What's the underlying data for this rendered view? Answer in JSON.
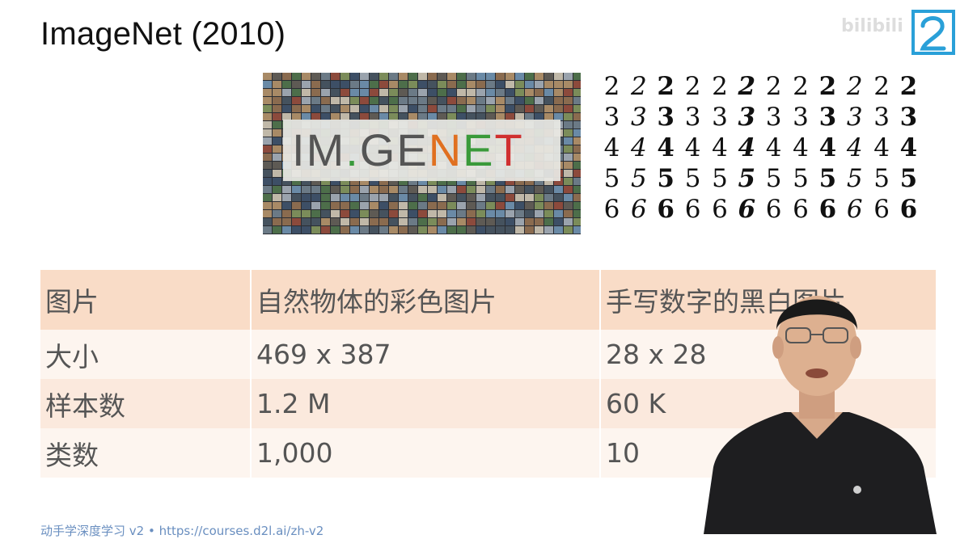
{
  "slide": {
    "title": "ImageNet (2010)"
  },
  "watermark": {
    "text": "bilibili"
  },
  "imagenet_figure": {
    "letters": [
      {
        "ch": "I",
        "color": "#555555"
      },
      {
        "ch": "M",
        "color": "#555555"
      },
      {
        "ch": ".",
        "color": "#3a9a3a"
      },
      {
        "ch": "G",
        "color": "#555555"
      },
      {
        "ch": "E",
        "color": "#555555"
      },
      {
        "ch": "N",
        "color": "#e07020"
      },
      {
        "ch": "E",
        "color": "#3a9a3a"
      },
      {
        "ch": "T",
        "color": "#d03030"
      }
    ]
  },
  "mnist_figure": {
    "rows": [
      [
        "2",
        "2",
        "2",
        "2",
        "2",
        "2",
        "2",
        "2",
        "2",
        "2",
        "2",
        "2"
      ],
      [
        "3",
        "3",
        "3",
        "3",
        "3",
        "3",
        "3",
        "3",
        "3",
        "3",
        "3",
        "3"
      ],
      [
        "4",
        "4",
        "4",
        "4",
        "4",
        "4",
        "4",
        "4",
        "4",
        "4",
        "4",
        "4"
      ],
      [
        "5",
        "5",
        "5",
        "5",
        "5",
        "5",
        "5",
        "5",
        "5",
        "5",
        "5",
        "5"
      ],
      [
        "6",
        "6",
        "6",
        "6",
        "6",
        "6",
        "6",
        "6",
        "6",
        "6",
        "6",
        "6"
      ]
    ]
  },
  "comparison_table": {
    "header": [
      "图片",
      "自然物体的彩色图片",
      "手写数字的黑白图片"
    ],
    "rows": [
      [
        "大小",
        "469 x 387",
        "28 x 28"
      ],
      [
        "样本数",
        "1.2 M",
        "60 K"
      ],
      [
        "类数",
        "1,000",
        "10"
      ]
    ]
  },
  "footer": {
    "text": "动手学深度学习 v2 • https://courses.d2l.ai/zh-v2"
  },
  "colors": {
    "table_header": "#f9dcc7",
    "table_row_odd": "#fbe9dd",
    "table_row_even": "#fdf5ef",
    "link": "#6a8fc0",
    "logo_blue": "#2aa0d8"
  }
}
